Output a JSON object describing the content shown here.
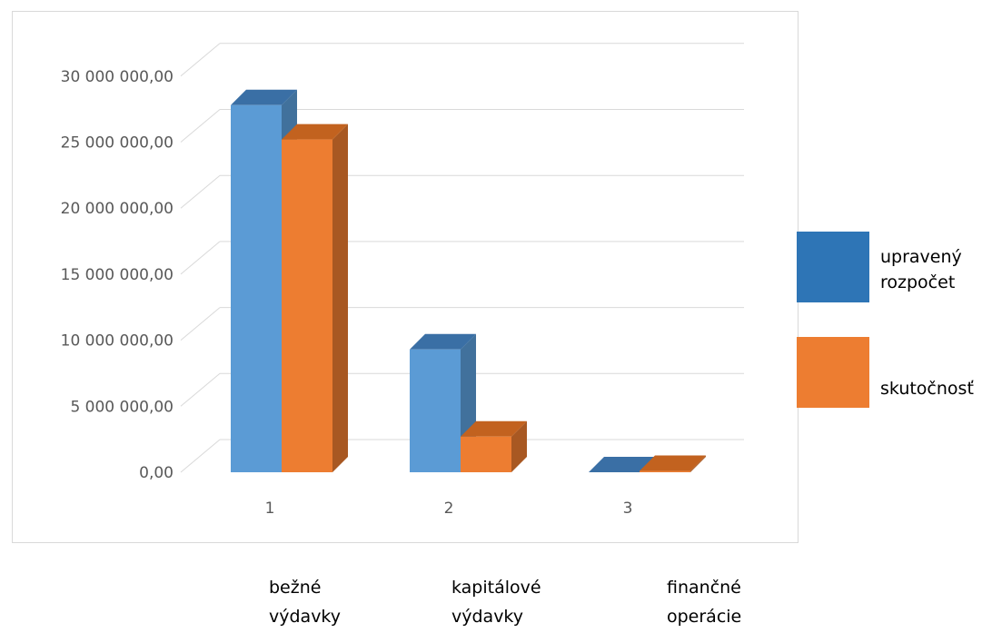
{
  "chart_data": {
    "type": "bar",
    "categories": [
      "1",
      "2",
      "3"
    ],
    "series": [
      {
        "name": "upravený rozpočet",
        "values": [
          27800000,
          9300000,
          0
        ],
        "color": "#5b9bd5",
        "side_color": "#41719c",
        "top_color": "#3a6fa5"
      },
      {
        "name": "skutočnosť",
        "values": [
          25200000,
          2700000,
          100000
        ],
        "color": "#ed7d31",
        "side_color": "#a85822",
        "top_color": "#c2621f"
      }
    ],
    "y_ticks": [
      "0,00",
      "5 000 000,00",
      "10 000 000,00",
      "15 000 000,00",
      "20 000 000,00",
      "25 000 000,00",
      "30 000 000,00"
    ],
    "ylim": [
      0,
      30000000
    ],
    "grid": true,
    "legend_position": "right",
    "title": "",
    "xlabel": "",
    "ylabel": ""
  },
  "legend": [
    {
      "label": "upravený\nrozpočet",
      "color": "#2e75b6"
    },
    {
      "label": "skutočnosť",
      "color": "#ed7d31"
    }
  ],
  "category_descriptions": [
    "bežné\nvýdavky",
    "kapitálové\nvýdavky",
    "finančné\noperácie"
  ]
}
